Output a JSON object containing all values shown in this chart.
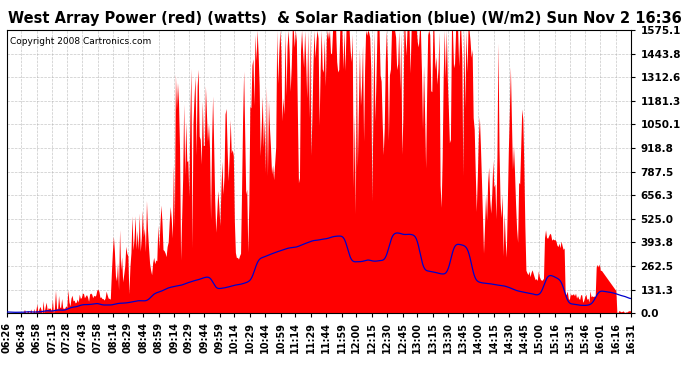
{
  "title": "West Array Power (red) (watts)  & Solar Radiation (blue) (W/m2) Sun Nov 2 16:36",
  "copyright": "Copyright 2008 Cartronics.com",
  "y_max": 1575.1,
  "y_min": 0.0,
  "y_ticks": [
    0.0,
    131.3,
    262.5,
    393.8,
    525.0,
    656.3,
    787.5,
    918.8,
    1050.1,
    1181.3,
    1312.6,
    1443.8,
    1575.1
  ],
  "background_color": "#ffffff",
  "plot_bg_color": "#ffffff",
  "grid_color": "#b0b0b0",
  "red_color": "#ff0000",
  "blue_color": "#0000cc",
  "title_fontsize": 10.5,
  "copyright_fontsize": 6.5,
  "tick_fontsize": 7.5,
  "x_labels": [
    "06:26",
    "06:43",
    "06:58",
    "07:13",
    "07:28",
    "07:43",
    "07:58",
    "08:14",
    "08:29",
    "08:44",
    "08:59",
    "09:14",
    "09:29",
    "09:44",
    "09:59",
    "10:14",
    "10:29",
    "10:44",
    "10:59",
    "11:14",
    "11:29",
    "11:44",
    "11:59",
    "12:00",
    "12:15",
    "12:30",
    "12:45",
    "13:00",
    "13:15",
    "13:30",
    "13:45",
    "14:00",
    "14:15",
    "14:30",
    "14:45",
    "15:00",
    "15:16",
    "15:31",
    "15:46",
    "16:01",
    "16:16",
    "16:31"
  ]
}
